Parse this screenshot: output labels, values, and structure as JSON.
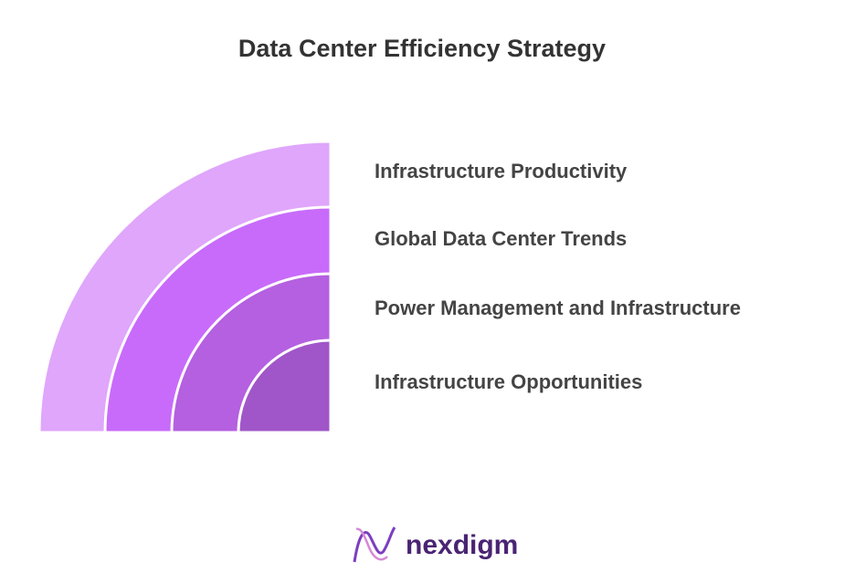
{
  "title": "Data Center Efficiency Strategy",
  "layers": [
    {
      "label": "Infrastructure Productivity"
    },
    {
      "label": "Global Data Center Trends"
    },
    {
      "label": "Power Management and Infrastructure"
    },
    {
      "label": "Infrastructure Opportunities"
    }
  ],
  "logo": {
    "text": "nexdigm"
  }
}
